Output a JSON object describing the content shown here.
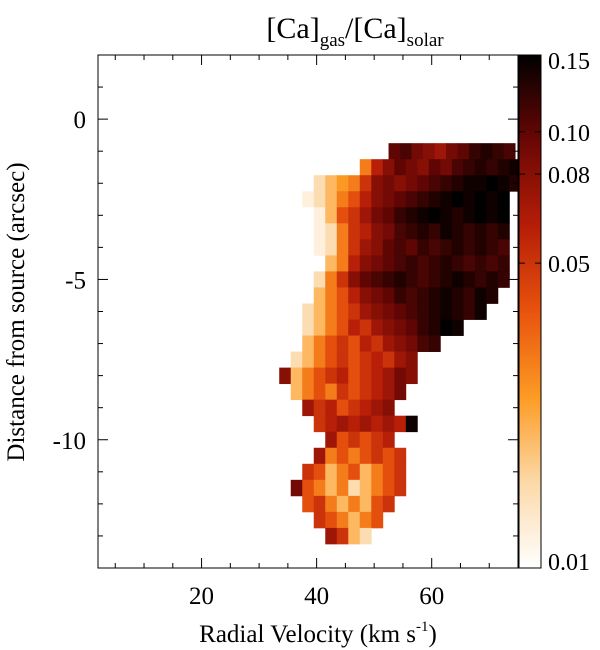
{
  "chart_data": {
    "type": "heatmap",
    "title": {
      "main1": "[Ca]",
      "sub1": "gas",
      "main2": "/[Ca]",
      "sub2": "solar"
    },
    "xlabel": {
      "main": "Radial Velocity (km s",
      "sup": "-1",
      "end": ")"
    },
    "ylabel": "Distance from source (arcsec)",
    "xlim": [
      2,
      75
    ],
    "ylim": [
      -14,
      2
    ],
    "x_ticks": [
      20,
      40,
      60
    ],
    "y_ticks": [
      0,
      -5,
      -10
    ],
    "x_tick_labels": [
      "20",
      "40",
      "60"
    ],
    "y_tick_labels": [
      "0",
      "-5",
      "-10"
    ],
    "cell_size": {
      "dx": 2.0,
      "dy": 0.5
    },
    "colorbar": {
      "scale": "log",
      "range": [
        0.01,
        0.15
      ],
      "ticks": [
        0.01,
        0.05,
        0.08,
        0.1,
        0.15
      ],
      "tick_labels": [
        "0.01",
        "0.05",
        "0.08",
        "0.10",
        "0.15"
      ],
      "colormap": [
        "#ffffff",
        "#fcd9a8",
        "#fd9b24",
        "#e8530e",
        "#b51d08",
        "#6a0704",
        "#000000"
      ]
    },
    "rows": [
      {
        "y": -1.0,
        "x_start": 53.5,
        "values": [
          0.1,
          0.11,
          0.09,
          0.08,
          0.07,
          0.09,
          0.1,
          0.12,
          0.13,
          0.12,
          0.11
        ]
      },
      {
        "y": -1.5,
        "x_start": 48.5,
        "values": [
          0.03,
          0.06,
          0.08,
          0.1,
          0.09,
          0.08,
          0.1,
          0.09,
          0.11,
          0.12,
          0.13,
          0.12,
          0.13,
          0.14,
          0.13
        ]
      },
      {
        "y": -2.0,
        "x_start": 40.5,
        "values": [
          0.015,
          0.02,
          0.025,
          0.03,
          0.05,
          0.08,
          0.09,
          0.08,
          0.09,
          0.1,
          0.11,
          0.12,
          0.13,
          0.14,
          0.14,
          0.15,
          0.14,
          0.13
        ]
      },
      {
        "y": -2.5,
        "x_start": 38.5,
        "values": [
          0.012,
          0.015,
          0.02,
          0.03,
          0.04,
          0.06,
          0.08,
          0.09,
          0.1,
          0.11,
          0.12,
          0.13,
          0.14,
          0.15,
          0.14,
          0.15,
          0.14,
          0.15
        ]
      },
      {
        "y": -3.0,
        "x_start": 38.5,
        "values": [
          0.01,
          0.012,
          0.02,
          0.04,
          0.05,
          0.07,
          0.09,
          0.1,
          0.12,
          0.13,
          0.14,
          0.15,
          0.14,
          0.13,
          0.14,
          0.15,
          0.14,
          0.15
        ]
      },
      {
        "y": -3.5,
        "x_start": 38.5,
        "values": [
          0.01,
          0.012,
          0.015,
          0.03,
          0.05,
          0.06,
          0.08,
          0.09,
          0.11,
          0.12,
          0.13,
          0.12,
          0.14,
          0.13,
          0.12,
          0.13,
          0.12,
          0.13
        ]
      },
      {
        "y": -4.0,
        "x_start": 40.5,
        "values": [
          0.012,
          0.015,
          0.03,
          0.05,
          0.07,
          0.08,
          0.1,
          0.11,
          0.1,
          0.12,
          0.11,
          0.12,
          0.13,
          0.12,
          0.13,
          0.12,
          0.11
        ]
      },
      {
        "y": -4.5,
        "x_start": 42.5,
        "values": [
          0.02,
          0.03,
          0.06,
          0.08,
          0.09,
          0.1,
          0.11,
          0.12,
          0.11,
          0.12,
          0.13,
          0.12,
          0.11,
          0.12,
          0.11,
          0.12
        ]
      },
      {
        "y": -5.0,
        "x_start": 40.5,
        "values": [
          0.015,
          0.03,
          0.05,
          0.08,
          0.1,
          0.11,
          0.12,
          0.13,
          0.12,
          0.11,
          0.12,
          0.13,
          0.14,
          0.13,
          0.12,
          0.13,
          0.12
        ]
      },
      {
        "y": -5.5,
        "x_start": 40.5,
        "values": [
          0.02,
          0.03,
          0.04,
          0.06,
          0.08,
          0.09,
          0.1,
          0.12,
          0.11,
          0.12,
          0.13,
          0.14,
          0.13,
          0.12,
          0.14,
          0.13
        ]
      },
      {
        "y": -6.0,
        "x_start": 38.5,
        "values": [
          0.015,
          0.02,
          0.03,
          0.04,
          0.05,
          0.07,
          0.08,
          0.09,
          0.1,
          0.11,
          0.12,
          0.13,
          0.14,
          0.13,
          0.12,
          0.14
        ]
      },
      {
        "y": -6.5,
        "x_start": 38.5,
        "values": [
          0.015,
          0.02,
          0.03,
          0.04,
          0.06,
          0.05,
          0.07,
          0.08,
          0.09,
          0.1,
          0.12,
          0.13,
          0.15,
          0.14
        ]
      },
      {
        "y": -7.0,
        "x_start": 38.5,
        "values": [
          0.02,
          0.03,
          0.04,
          0.05,
          0.04,
          0.06,
          0.05,
          0.07,
          0.08,
          0.09,
          0.11,
          0.12
        ]
      },
      {
        "y": -7.5,
        "x_start": 36.5,
        "values": [
          0.015,
          0.02,
          0.03,
          0.04,
          0.05,
          0.04,
          0.05,
          0.06,
          0.05,
          0.07,
          0.08
        ]
      },
      {
        "y": -8.0,
        "x_start": 34.5,
        "values": [
          0.08,
          0.02,
          0.03,
          0.04,
          0.05,
          0.06,
          0.04,
          0.05,
          0.06,
          0.07,
          0.09,
          0.08
        ]
      },
      {
        "y": -8.5,
        "x_start": 36.5,
        "values": [
          0.02,
          0.03,
          0.04,
          0.03,
          0.05,
          0.04,
          0.05,
          0.06,
          0.07,
          0.09
        ]
      },
      {
        "y": -9.0,
        "x_start": 38.5,
        "values": [
          0.07,
          0.05,
          0.06,
          0.04,
          0.05,
          0.06,
          0.07,
          0.08
        ]
      },
      {
        "y": -9.5,
        "x_start": 40.5,
        "values": [
          0.05,
          0.06,
          0.07,
          0.06,
          0.07,
          0.06,
          0.07,
          0.06,
          0.14
        ]
      },
      {
        "y": -10.0,
        "x_start": 42.5,
        "values": [
          0.07,
          0.04,
          0.05,
          0.04,
          0.05,
          0.06
        ]
      },
      {
        "y": -10.5,
        "x_start": 40.5,
        "values": [
          0.07,
          0.03,
          0.04,
          0.03,
          0.04,
          0.05,
          0.04,
          0.05
        ]
      },
      {
        "y": -11.0,
        "x_start": 38.5,
        "values": [
          0.05,
          0.04,
          0.02,
          0.03,
          0.04,
          0.02,
          0.03,
          0.04,
          0.05
        ]
      },
      {
        "y": -11.5,
        "x_start": 36.5,
        "values": [
          0.09,
          0.04,
          0.03,
          0.02,
          0.03,
          0.015,
          0.02,
          0.03,
          0.04,
          0.05
        ]
      },
      {
        "y": -12.0,
        "x_start": 38.5,
        "values": [
          0.04,
          0.05,
          0.03,
          0.02,
          0.03,
          0.02,
          0.04,
          0.05
        ]
      },
      {
        "y": -12.5,
        "x_start": 40.5,
        "values": [
          0.05,
          0.04,
          0.03,
          0.02,
          0.03,
          0.04
        ]
      },
      {
        "y": -13.0,
        "x_start": 42.5,
        "values": [
          0.07,
          0.05,
          0.02,
          0.015
        ]
      }
    ]
  }
}
